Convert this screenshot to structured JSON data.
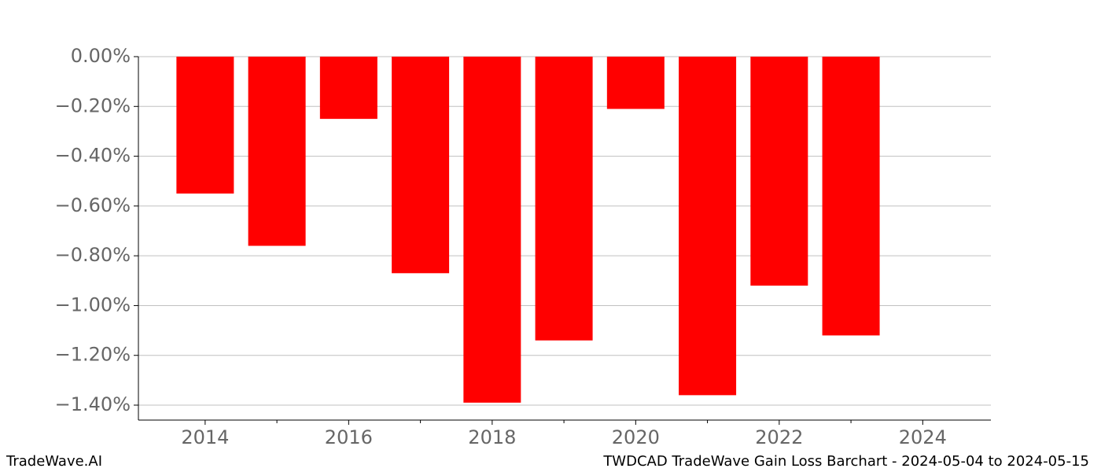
{
  "chart_data": {
    "type": "bar",
    "title": "TWDCAD TradeWave Gain Loss Barchart - 2024-05-04 to 2024-05-15",
    "brand": "TradeWave.AI",
    "x": [
      2014,
      2015,
      2016,
      2017,
      2018,
      2019,
      2020,
      2021,
      2022,
      2023
    ],
    "values": [
      -0.55,
      -0.76,
      -0.25,
      -0.87,
      -1.39,
      -1.14,
      -0.21,
      -1.36,
      -0.92,
      -1.12
    ],
    "color": "#ff0000",
    "xlim": [
      2013.07,
      2024.95
    ],
    "xticks": [
      2014,
      2016,
      2018,
      2020,
      2022,
      2024
    ],
    "xticks_minor": [
      2015,
      2017,
      2019,
      2021,
      2023
    ],
    "ylim": [
      -1.46,
      0
    ],
    "yticks": [
      {
        "value": 0,
        "label": "0.00%"
      },
      {
        "value": -0.2,
        "label": "−0.20%"
      },
      {
        "value": -0.4,
        "label": "−0.40%"
      },
      {
        "value": -0.6,
        "label": "−0.60%"
      },
      {
        "value": -0.8,
        "label": "−0.80%"
      },
      {
        "value": -1.0,
        "label": "−1.00%"
      },
      {
        "value": -1.2,
        "label": "−1.20%"
      },
      {
        "value": -1.4,
        "label": "−1.40%"
      }
    ],
    "grid": true
  }
}
